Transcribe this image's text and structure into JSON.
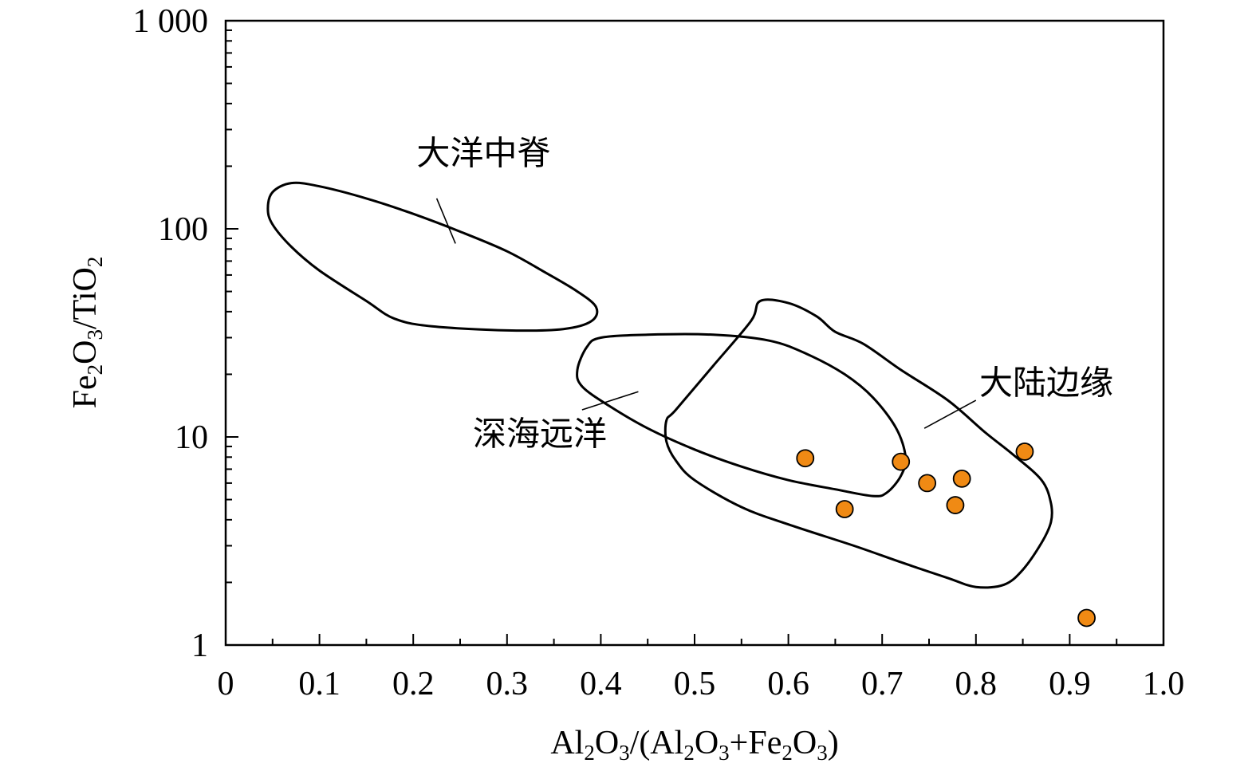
{
  "chart_data": {
    "type": "scatter",
    "xlabel": "Al2O3/(Al2O3+Fe2O3)",
    "ylabel": "Fe2O3/TiO2",
    "xlim": [
      0,
      1.0
    ],
    "ylim": [
      1,
      1000
    ],
    "yscale": "log",
    "x_ticks": [
      {
        "value": 0,
        "label": "0"
      },
      {
        "value": 0.1,
        "label": "0.1"
      },
      {
        "value": 0.2,
        "label": "0.2"
      },
      {
        "value": 0.3,
        "label": "0.3"
      },
      {
        "value": 0.4,
        "label": "0.4"
      },
      {
        "value": 0.5,
        "label": "0.5"
      },
      {
        "value": 0.6,
        "label": "0.6"
      },
      {
        "value": 0.7,
        "label": "0.7"
      },
      {
        "value": 0.8,
        "label": "0.8"
      },
      {
        "value": 0.9,
        "label": "0.9"
      },
      {
        "value": 1.0,
        "label": "1.0"
      }
    ],
    "y_ticks": [
      {
        "value": 1,
        "label": "1"
      },
      {
        "value": 10,
        "label": "10"
      },
      {
        "value": 100,
        "label": "100"
      },
      {
        "value": 1000,
        "label": "1 000"
      }
    ],
    "regions": [
      {
        "name": "大洋中脊",
        "outline": [
          [
            0.07,
            166
          ],
          [
            0.1,
            160
          ],
          [
            0.15,
            140
          ],
          [
            0.2,
            118
          ],
          [
            0.25,
            97
          ],
          [
            0.3,
            78
          ],
          [
            0.34,
            62
          ],
          [
            0.375,
            50
          ],
          [
            0.395,
            42
          ],
          [
            0.39,
            36
          ],
          [
            0.36,
            33
          ],
          [
            0.3,
            32.5
          ],
          [
            0.22,
            34
          ],
          [
            0.18,
            37
          ],
          [
            0.15,
            45
          ],
          [
            0.1,
            63
          ],
          [
            0.07,
            82
          ],
          [
            0.05,
            105
          ],
          [
            0.045,
            125
          ],
          [
            0.05,
            150
          ],
          [
            0.07,
            166
          ]
        ],
        "leader": [
          [
            0.245,
            85
          ],
          [
            0.225,
            140
          ]
        ],
        "label_at": [
          0.275,
          203
        ]
      },
      {
        "name": "深海远洋",
        "outline": [
          [
            0.4,
            30
          ],
          [
            0.45,
            31
          ],
          [
            0.52,
            31
          ],
          [
            0.58,
            29
          ],
          [
            0.62,
            25
          ],
          [
            0.66,
            20
          ],
          [
            0.69,
            15.5
          ],
          [
            0.715,
            11
          ],
          [
            0.725,
            8
          ],
          [
            0.72,
            6.5
          ],
          [
            0.705,
            5.4
          ],
          [
            0.69,
            5.2
          ],
          [
            0.65,
            5.6
          ],
          [
            0.6,
            6.2
          ],
          [
            0.55,
            7.2
          ],
          [
            0.5,
            8.7
          ],
          [
            0.45,
            11
          ],
          [
            0.41,
            14
          ],
          [
            0.38,
            17.5
          ],
          [
            0.375,
            21
          ],
          [
            0.385,
            27
          ],
          [
            0.4,
            30
          ]
        ],
        "leader": [
          [
            0.38,
            13.5
          ],
          [
            0.44,
            16.5
          ]
        ],
        "label_at": [
          0.335,
          9.1
        ]
      },
      {
        "name": "大陆边缘",
        "outline": [
          [
            0.57,
            45
          ],
          [
            0.6,
            44
          ],
          [
            0.63,
            38
          ],
          [
            0.65,
            32
          ],
          [
            0.68,
            28
          ],
          [
            0.72,
            21
          ],
          [
            0.77,
            15
          ],
          [
            0.81,
            10.5
          ],
          [
            0.84,
            8.2
          ],
          [
            0.87,
            6.2
          ],
          [
            0.88,
            4.8
          ],
          [
            0.88,
            3.9
          ],
          [
            0.87,
            3.1
          ],
          [
            0.85,
            2.3
          ],
          [
            0.83,
            1.95
          ],
          [
            0.8,
            1.9
          ],
          [
            0.77,
            2.1
          ],
          [
            0.72,
            2.5
          ],
          [
            0.67,
            3
          ],
          [
            0.6,
            3.8
          ],
          [
            0.55,
            4.6
          ],
          [
            0.5,
            6.2
          ],
          [
            0.48,
            7.7
          ],
          [
            0.47,
            9.5
          ],
          [
            0.47,
            12
          ],
          [
            0.48,
            13.5
          ],
          [
            0.52,
            22
          ],
          [
            0.56,
            36
          ],
          [
            0.57,
            45
          ]
        ],
        "leader": [
          [
            0.745,
            11
          ],
          [
            0.8,
            15
          ]
        ],
        "label_at": [
          0.875,
          16
        ]
      }
    ],
    "points": [
      {
        "x": 0.618,
        "y": 7.9
      },
      {
        "x": 0.66,
        "y": 4.5
      },
      {
        "x": 0.72,
        "y": 7.6
      },
      {
        "x": 0.748,
        "y": 6.0
      },
      {
        "x": 0.778,
        "y": 4.7
      },
      {
        "x": 0.785,
        "y": 6.3
      },
      {
        "x": 0.852,
        "y": 8.5
      },
      {
        "x": 0.918,
        "y": 1.35
      }
    ],
    "point_color": "#f08a14"
  }
}
